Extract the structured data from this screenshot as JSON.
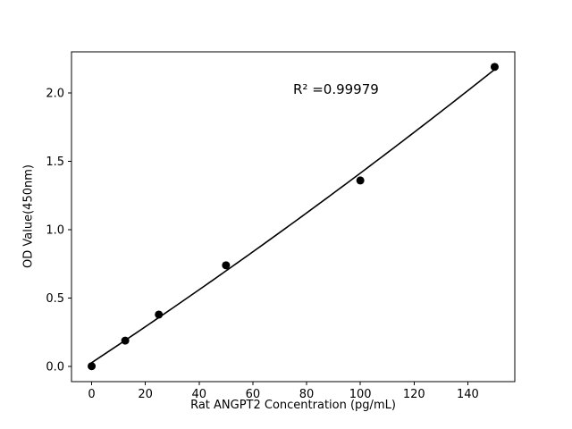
{
  "chart_data": {
    "type": "scatter",
    "title": "",
    "xlabel": "Rat ANGPT2 Concentration (pg/mL)",
    "ylabel": "OD Value(450nm)",
    "annotation": "R² =0.99979",
    "x": [
      0,
      12.5,
      25,
      50,
      100,
      150
    ],
    "y": [
      0.003,
      0.19,
      0.38,
      0.74,
      1.36,
      2.19
    ],
    "fit": "quadratic",
    "xlim": [
      -7.5,
      157.5
    ],
    "ylim": [
      -0.11,
      2.3
    ],
    "xticks": [
      0,
      20,
      40,
      60,
      80,
      100,
      120,
      140
    ],
    "xtick_labels": [
      "0",
      "20",
      "40",
      "60",
      "80",
      "100",
      "120",
      "140"
    ],
    "yticks": [
      0.0,
      0.5,
      1.0,
      1.5,
      2.0
    ],
    "ytick_labels": [
      "0.0",
      "0.5",
      "1.0",
      "1.5",
      "2.0"
    ],
    "grid": false,
    "legend": "none",
    "marker_color": "#000000",
    "line_color": "#000000",
    "background": "#ffffff"
  }
}
